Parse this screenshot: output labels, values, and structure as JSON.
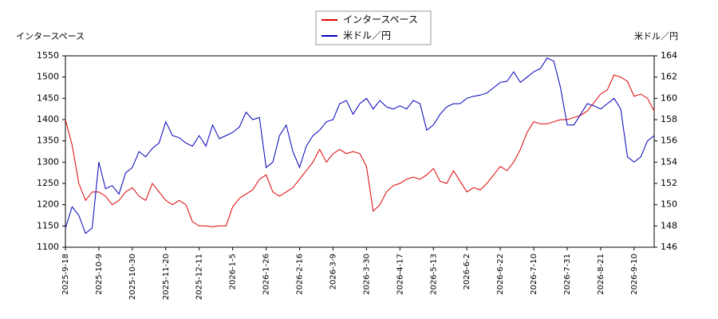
{
  "chart_data": {
    "type": "line",
    "y_label": "インタースペース",
    "y2_label": "米ドル／円",
    "categories": [
      "2025-9-18",
      null,
      null,
      null,
      null,
      "2025-10-9",
      null,
      null,
      null,
      null,
      "2025-10-30",
      null,
      null,
      null,
      null,
      "2025-11-20",
      null,
      null,
      null,
      null,
      "2025-12-11",
      null,
      null,
      null,
      null,
      "2026-1-5",
      null,
      null,
      null,
      null,
      "2026-1-26",
      null,
      null,
      null,
      null,
      "2026-2-16",
      null,
      null,
      null,
      null,
      "2026-3-9",
      null,
      null,
      null,
      null,
      "2026-3-30",
      null,
      null,
      null,
      null,
      "2026-4-17",
      null,
      null,
      null,
      null,
      "2026-5-13",
      null,
      null,
      null,
      null,
      "2026-6-2",
      null,
      null,
      null,
      null,
      "2026-6-22",
      null,
      null,
      null,
      null,
      "2026-7-10",
      null,
      null,
      null,
      null,
      "2026-7-31",
      null,
      null,
      null,
      null,
      "2026-8-21",
      null,
      null,
      null,
      null,
      "2026-9-10",
      null,
      null,
      null
    ],
    "series": [
      {
        "name": "インタースペース",
        "color": "#dd0000",
        "axis": "y",
        "values": [
          1400,
          1340,
          1250,
          1210,
          1230,
          1230,
          1220,
          1200,
          1210,
          1230,
          1240,
          1220,
          1210,
          1250,
          1230,
          1210,
          1200,
          1210,
          1200,
          1160,
          1150,
          1150,
          1148,
          1150,
          1150,
          1195,
          1215,
          1225,
          1235,
          1260,
          1270,
          1230,
          1220,
          1230,
          1240,
          1260,
          1280,
          1300,
          1330,
          1300,
          1320,
          1330,
          1320,
          1325,
          1320,
          1290,
          1185,
          1200,
          1230,
          1245,
          1250,
          1260,
          1265,
          1260,
          1270,
          1285,
          1255,
          1250,
          1280,
          1255,
          1230,
          1240,
          1235,
          1250,
          1270,
          1290,
          1280,
          1300,
          1330,
          1370,
          1395,
          1390,
          1390,
          1395,
          1400,
          1400,
          1405,
          1410,
          1420,
          1440,
          1460,
          1470,
          1505,
          1500,
          1490,
          1455,
          1460,
          1450,
          1420
        ]
      },
      {
        "name": "米ドル／円",
        "color": "#0000bb",
        "axis": "y2",
        "values": [
          147.8,
          149.8,
          149,
          147.3,
          147.8,
          154,
          151.5,
          151.8,
          151,
          153,
          153.5,
          155,
          154.5,
          155.3,
          155.8,
          157.8,
          156.5,
          156.3,
          155.8,
          155.5,
          156.5,
          155.5,
          157.5,
          156.2,
          156.5,
          156.8,
          157.3,
          158.7,
          158,
          158.2,
          153.5,
          154,
          156.5,
          157.5,
          155,
          153.5,
          155.5,
          156.5,
          157,
          157.8,
          158,
          159.5,
          159.8,
          158.5,
          159.5,
          160,
          159,
          159.8,
          159.2,
          159,
          159.3,
          159,
          159.8,
          159.5,
          157,
          157.5,
          158.5,
          159.2,
          159.5,
          159.5,
          160,
          160.2,
          160.3,
          160.5,
          161,
          161.5,
          161.6,
          162.5,
          161.5,
          162,
          162.5,
          162.8,
          163.8,
          163.5,
          161,
          157.5,
          157.5,
          158.5,
          159.5,
          159.3,
          159,
          159.5,
          160,
          159,
          154.5,
          154,
          154.5,
          156,
          156.5
        ]
      }
    ],
    "ylim": [
      1100,
      1550
    ],
    "yticks": [
      1100,
      1150,
      1200,
      1250,
      1300,
      1350,
      1400,
      1450,
      1500,
      1550
    ],
    "y2lim": [
      146,
      164
    ],
    "y2ticks": [
      146,
      148,
      150,
      152,
      154,
      156,
      158,
      160,
      162,
      164
    ],
    "grid": false,
    "legend": "top"
  }
}
